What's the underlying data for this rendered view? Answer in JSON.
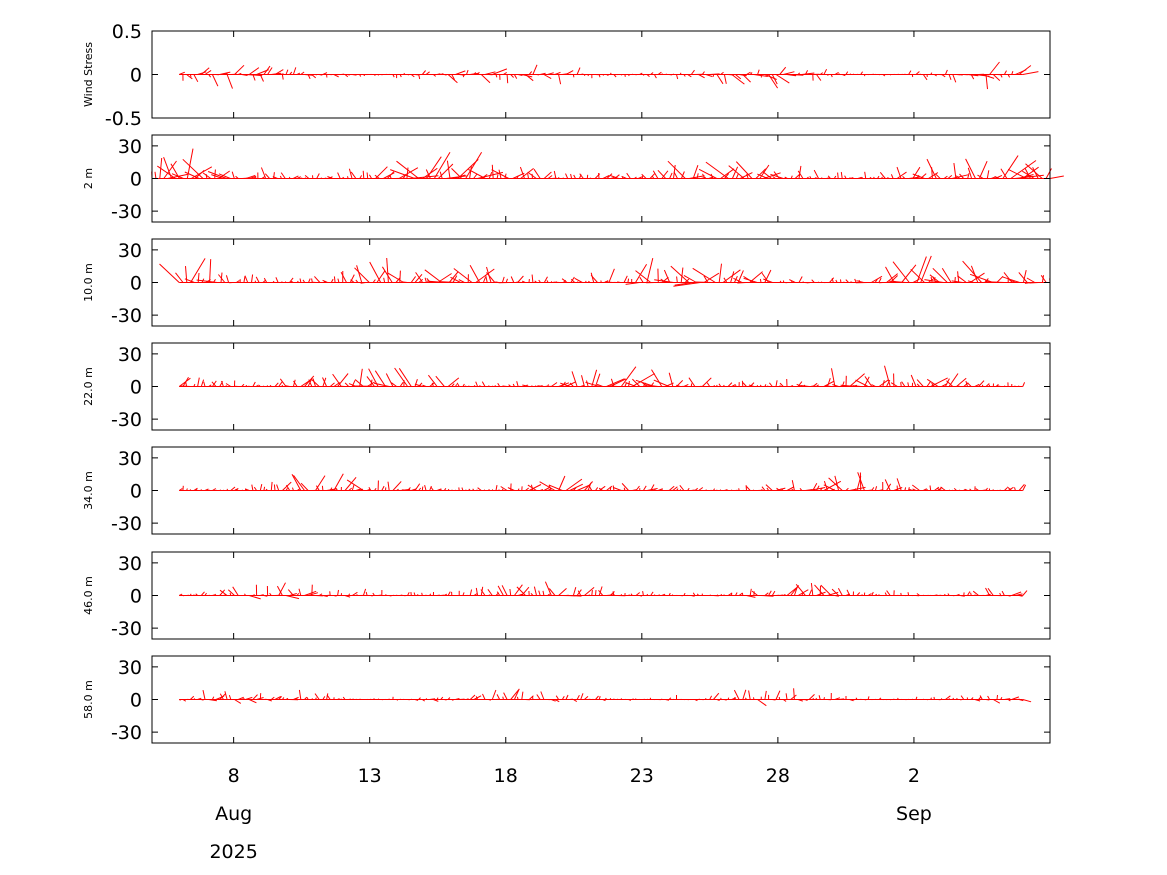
{
  "chart_data": {
    "type": "stick",
    "color": "#ff0000",
    "x_axis": {
      "start": "2025-08-05",
      "end": "2025-09-07",
      "ticks": [
        "8",
        "13",
        "18",
        "23",
        "28",
        "2"
      ],
      "tick_dates": [
        "2025-08-08",
        "2025-08-13",
        "2025-08-18",
        "2025-08-23",
        "2025-08-28",
        "2025-09-02"
      ],
      "month_labels": [
        {
          "label": "Aug",
          "date": "2025-08-08"
        },
        {
          "label": "Sep",
          "date": "2025-09-02"
        }
      ],
      "year_label": "2025"
    },
    "panels": [
      {
        "ylabel": "Wind Stress",
        "ylim": [
          -0.5,
          0.5
        ],
        "yticks": [
          "0.5",
          "0",
          "-0.5"
        ],
        "ytick_values": [
          0.5,
          0,
          -0.5
        ],
        "series_start": "2025-08-06",
        "series_end": "2025-09-06",
        "max_stick": 0.2,
        "dir": 0.05
      },
      {
        "ylabel": "2 m",
        "ylim": [
          -40,
          40
        ],
        "yticks": [
          "30",
          "0",
          "-30"
        ],
        "ytick_values": [
          30,
          0,
          -30
        ],
        "series_start": "2025-08-05",
        "series_end": "2025-09-07",
        "max_stick": 30,
        "dir": -0.45
      },
      {
        "ylabel": "10.0 m",
        "ylim": [
          -40,
          40
        ],
        "yticks": [
          "30",
          "0",
          "-30"
        ],
        "ytick_values": [
          30,
          0,
          -30
        ],
        "series_start": "2025-08-06",
        "series_end": "2025-09-07",
        "max_stick": 30,
        "dir": -0.6
      },
      {
        "ylabel": "22.0 m",
        "ylim": [
          -40,
          40
        ],
        "yticks": [
          "30",
          "0",
          "-30"
        ],
        "ytick_values": [
          30,
          0,
          -30
        ],
        "series_start": "2025-08-06",
        "series_end": "2025-09-06",
        "max_stick": 25,
        "dir": -0.55
      },
      {
        "ylabel": "34.0 m",
        "ylim": [
          -40,
          40
        ],
        "yticks": [
          "30",
          "0",
          "-30"
        ],
        "ytick_values": [
          30,
          0,
          -30
        ],
        "series_start": "2025-08-06",
        "series_end": "2025-09-06",
        "max_stick": 20,
        "dir": -0.45
      },
      {
        "ylabel": "46.0 m",
        "ylim": [
          -40,
          40
        ],
        "yticks": [
          "30",
          "0",
          "-30"
        ],
        "ytick_values": [
          30,
          0,
          -30
        ],
        "series_start": "2025-08-06",
        "series_end": "2025-09-06",
        "max_stick": 15,
        "dir": -0.35
      },
      {
        "ylabel": "58.0 m",
        "ylim": [
          -40,
          40
        ],
        "yticks": [
          "30",
          "0",
          "-30"
        ],
        "ytick_values": [
          30,
          0,
          -30
        ],
        "series_start": "2025-08-06",
        "series_end": "2025-09-06",
        "max_stick": 12,
        "dir": -0.25
      }
    ]
  }
}
